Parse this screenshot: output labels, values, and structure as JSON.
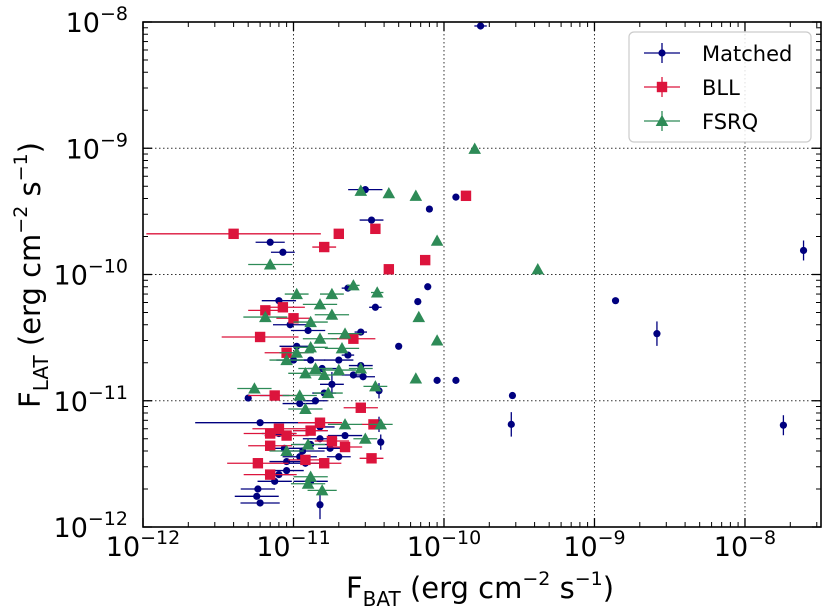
{
  "chart_data": {
    "type": "scatter",
    "x_scale": "log",
    "y_scale": "log",
    "xlim": [
      1e-12,
      3.2e-08
    ],
    "ylim": [
      1e-12,
      1e-08
    ],
    "x_ticks": [
      {
        "value": 1e-12,
        "base": "10",
        "exp": "−12"
      },
      {
        "value": 1e-11,
        "base": "10",
        "exp": "−11"
      },
      {
        "value": 1e-10,
        "base": "10",
        "exp": "−10"
      },
      {
        "value": 1e-09,
        "base": "10",
        "exp": "−9"
      },
      {
        "value": 1e-08,
        "base": "10",
        "exp": "−8"
      }
    ],
    "y_ticks": [
      {
        "value": 1e-12,
        "base": "10",
        "exp": "−12"
      },
      {
        "value": 1e-11,
        "base": "10",
        "exp": "−11"
      },
      {
        "value": 1e-10,
        "base": "10",
        "exp": "−10"
      },
      {
        "value": 1e-09,
        "base": "10",
        "exp": "−9"
      },
      {
        "value": 1e-08,
        "base": "10",
        "exp": "−8"
      }
    ],
    "xlabel": {
      "main": "F",
      "sub": "BAT",
      "unit_a": " (erg cm",
      "exp_a": "−2",
      "unit_b": " s",
      "exp_b": "−1",
      "close": ")"
    },
    "ylabel": {
      "main": "F",
      "sub": "LAT",
      "unit_a": " (erg cm",
      "exp_a": "−2",
      "unit_b": " s",
      "exp_b": "−1",
      "close": ")"
    },
    "grid": true,
    "legend_position": "top-right",
    "series": [
      {
        "name": "Matched",
        "color": "#00007f",
        "marker": "circle",
        "points": [
          [
            1.75e-10,
            9.3e-09,
            1.1,
            1.0
          ],
          [
            2.45e-08,
            1.55e-10,
            1.05,
            1.2
          ],
          [
            1.38e-09,
            6.2e-11,
            1.0,
            1.0
          ],
          [
            2.6e-09,
            3.4e-11,
            1.0,
            1.25
          ],
          [
            1.8e-08,
            6.4e-12,
            1.05,
            1.2
          ],
          [
            2.8e-10,
            6.5e-12,
            1.05,
            1.25
          ],
          [
            2.85e-10,
            1.1e-11,
            1.0,
            1.0
          ],
          [
            1.2e-10,
            1.45e-11,
            1.0,
            1.0
          ],
          [
            9e-11,
            1.45e-11,
            1.0,
            1.0
          ],
          [
            8e-11,
            3.3e-10,
            1.0,
            1.0
          ],
          [
            1.2e-10,
            4.1e-10,
            1.0,
            1.0
          ],
          [
            3e-11,
            4.7e-10,
            1.3,
            1.0
          ],
          [
            3.3e-11,
            2.7e-10,
            1.2,
            1.0
          ],
          [
            3.5e-11,
            5.5e-11,
            1.1,
            1.0
          ],
          [
            2.8e-11,
            3.5e-11,
            1.1,
            1.0
          ],
          [
            7.8e-11,
            8e-11,
            1.0,
            1.0
          ],
          [
            6.7e-11,
            6.1e-11,
            1.0,
            1.0
          ],
          [
            5e-11,
            2.7e-11,
            1.0,
            1.0
          ],
          [
            2.3e-11,
            7.8e-11,
            1.1,
            1.0
          ],
          [
            2.3e-11,
            2.3e-11,
            1.1,
            1.0
          ],
          [
            1.3e-11,
            2.1e-11,
            1.25,
            1.0
          ],
          [
            1.25e-11,
            3.6e-11,
            1.3,
            1.0
          ],
          [
            1.05e-11,
            2.7e-11,
            1.3,
            1.0
          ],
          [
            8e-12,
            6.2e-11,
            1.3,
            1.0
          ],
          [
            7e-12,
            1.8e-10,
            1.25,
            1.0
          ],
          [
            8.5e-12,
            1.5e-10,
            1.2,
            1.0
          ],
          [
            9.5e-12,
            4e-11,
            1.3,
            1.0
          ],
          [
            5e-12,
            1.05e-11,
            1.0,
            1.0
          ],
          [
            7.5e-12,
            1.1e-11,
            1.25,
            1.0
          ],
          [
            1.4e-11,
            1e-11,
            1.2,
            1.0
          ],
          [
            1.6e-11,
            1.15e-11,
            1.2,
            1.0
          ],
          [
            1.1e-11,
            9.5e-12,
            1.3,
            1.0
          ],
          [
            3.7e-11,
            1.2e-11,
            1.0,
            1.15
          ],
          [
            3.7e-11,
            6.5e-12,
            1.0,
            1.15
          ],
          [
            3.8e-11,
            4.7e-12,
            1.0,
            1.15
          ],
          [
            2.5e-11,
            1.6e-11,
            1.2,
            1.0
          ],
          [
            2e-11,
            2.1e-11,
            1.25,
            1.0
          ],
          [
            1.8e-11,
            1.35e-11,
            1.2,
            1.25
          ],
          [
            6e-12,
            6.7e-12,
            2.7,
            1.0
          ],
          [
            1.5e-11,
            6.2e-12,
            1.25,
            1.0
          ],
          [
            1.3e-11,
            5.8e-12,
            1.3,
            1.0
          ],
          [
            1.5e-11,
            5e-12,
            1.3,
            1.0
          ],
          [
            1.3e-11,
            4.5e-12,
            1.3,
            1.0
          ],
          [
            1.15e-11,
            4e-12,
            1.4,
            1.0
          ],
          [
            8e-12,
            5.5e-12,
            1.3,
            1.0
          ],
          [
            8.7e-12,
            4.2e-12,
            1.3,
            1.0
          ],
          [
            9e-12,
            3.3e-12,
            1.3,
            1.0
          ],
          [
            9e-12,
            2.8e-12,
            1.3,
            1.0
          ],
          [
            8e-12,
            2.6e-12,
            1.25,
            1.0
          ],
          [
            7.5e-12,
            2.3e-12,
            1.3,
            1.0
          ],
          [
            5.8e-12,
            2e-12,
            1.3,
            1.0
          ],
          [
            5.7e-12,
            1.75e-12,
            1.4,
            1.0
          ],
          [
            6e-12,
            1.55e-12,
            1.35,
            1.0
          ],
          [
            1.3e-11,
            2.3e-12,
            1.3,
            1.0
          ],
          [
            1.5e-11,
            1.5e-12,
            1.0,
            1.3
          ],
          [
            1.2e-11,
            3.2e-12,
            1.3,
            1.0
          ],
          [
            2e-11,
            3.6e-12,
            1.2,
            1.0
          ],
          [
            1.75e-11,
            4.2e-12,
            1.2,
            1.0
          ],
          [
            2.2e-11,
            5.3e-12,
            1.3,
            1.0
          ],
          [
            1.1e-11,
            3.6e-12,
            1.3,
            1.0
          ],
          [
            1e-11,
            2.1e-11,
            1.3,
            1.0
          ],
          [
            1.55e-11,
            1.8e-11,
            1.25,
            1.0
          ],
          [
            2.8e-11,
            1.9e-11,
            1.2,
            1.0
          ],
          [
            2.9e-11,
            1.55e-11,
            1.2,
            1.0
          ]
        ]
      },
      {
        "name": "BLL",
        "color": "#dc143c",
        "marker": "square",
        "points": [
          [
            4e-12,
            2.1e-10,
            3.8,
            1.0
          ],
          [
            1.4e-10,
            4.2e-10,
            1.0,
            1.0
          ],
          [
            4.3e-11,
            1.1e-10,
            1.0,
            1.0
          ],
          [
            3.5e-11,
            2.3e-10,
            1.0,
            1.0
          ],
          [
            2e-11,
            2.1e-10,
            1.0,
            1.0
          ],
          [
            1.6e-11,
            1.65e-10,
            1.2,
            1.0
          ],
          [
            7.5e-11,
            1.3e-10,
            1.0,
            1.0
          ],
          [
            6.5e-12,
            5.2e-11,
            1.3,
            1.0
          ],
          [
            8.5e-12,
            5.5e-11,
            1.4,
            1.0
          ],
          [
            1e-11,
            4.5e-11,
            1.3,
            1.0
          ],
          [
            6e-12,
            3.2e-11,
            1.8,
            1.0
          ],
          [
            9e-12,
            2.4e-11,
            1.4,
            1.0
          ],
          [
            7.5e-12,
            1.1e-11,
            1.5,
            1.0
          ],
          [
            2.5e-11,
            3.1e-11,
            1.4,
            1.0
          ],
          [
            2.8e-11,
            8.8e-12,
            1.3,
            1.0
          ],
          [
            1.5e-11,
            6.7e-12,
            1.4,
            1.0
          ],
          [
            8e-12,
            6e-12,
            1.5,
            1.0
          ],
          [
            7e-12,
            5.5e-12,
            1.5,
            1.0
          ],
          [
            9e-12,
            5.3e-12,
            1.4,
            1.0
          ],
          [
            1.3e-11,
            5.8e-12,
            1.3,
            1.0
          ],
          [
            3.4e-11,
            6.5e-12,
            1.2,
            1.0
          ],
          [
            1.8e-11,
            4.8e-12,
            1.3,
            1.0
          ],
          [
            2.2e-11,
            4.3e-12,
            1.3,
            1.0
          ],
          [
            3.3e-11,
            3.5e-12,
            1.2,
            1.0
          ],
          [
            7e-12,
            4.4e-12,
            1.4,
            1.0
          ],
          [
            5.8e-12,
            3.2e-12,
            1.6,
            1.0
          ],
          [
            7e-12,
            2.6e-12,
            1.5,
            1.0
          ],
          [
            1.2e-11,
            3.4e-12,
            1.3,
            1.0
          ],
          [
            1.6e-11,
            3.2e-12,
            1.3,
            1.0
          ]
        ]
      },
      {
        "name": "FSRQ",
        "color": "#2e8b57",
        "marker": "triangle",
        "points": [
          [
            1.6e-10,
            9.9e-10,
            1.0,
            1.0
          ],
          [
            4.3e-11,
            4.4e-10,
            1.0,
            1.0
          ],
          [
            2.8e-11,
            4.6e-10,
            1.0,
            1.0
          ],
          [
            6.5e-11,
            4.2e-10,
            1.0,
            1.0
          ],
          [
            9e-11,
            1.85e-10,
            1.0,
            1.0
          ],
          [
            4.2e-10,
            1.1e-10,
            1.0,
            1.0
          ],
          [
            6.8e-11,
            4.6e-11,
            1.0,
            1.0
          ],
          [
            9e-11,
            3e-11,
            1.0,
            1.0
          ],
          [
            6.5e-11,
            1.5e-11,
            1.0,
            1.0
          ],
          [
            3.6e-11,
            7.2e-11,
            1.1,
            1.0
          ],
          [
            2.5e-11,
            8.2e-11,
            1.1,
            1.0
          ],
          [
            1.8e-11,
            7e-11,
            1.2,
            1.0
          ],
          [
            1.05e-11,
            7e-11,
            1.2,
            1.0
          ],
          [
            1.5e-11,
            5.8e-11,
            1.3,
            1.0
          ],
          [
            1.8e-11,
            4.8e-11,
            1.3,
            1.0
          ],
          [
            2.2e-11,
            3.4e-11,
            1.3,
            1.0
          ],
          [
            1.5e-11,
            3.1e-11,
            1.3,
            1.0
          ],
          [
            6.5e-12,
            4.6e-11,
            1.4,
            1.0
          ],
          [
            1.3e-11,
            4.2e-11,
            1.3,
            1.0
          ],
          [
            1.2e-11,
            1.65e-11,
            1.3,
            1.0
          ],
          [
            1.4e-11,
            1.8e-11,
            1.3,
            1.0
          ],
          [
            2e-11,
            1.75e-11,
            1.3,
            1.0
          ],
          [
            3.5e-11,
            1.3e-11,
            1.2,
            1.0
          ],
          [
            2.8e-11,
            1.8e-11,
            1.2,
            1.0
          ],
          [
            1.6e-11,
            1.6e-11,
            1.3,
            1.0
          ],
          [
            9e-12,
            2.1e-11,
            1.3,
            1.0
          ],
          [
            1.3e-11,
            2.65e-11,
            1.3,
            1.0
          ],
          [
            3.8e-11,
            6.5e-12,
            1.2,
            1.0
          ],
          [
            3e-11,
            5e-12,
            1.2,
            1.0
          ],
          [
            2.2e-11,
            6.5e-12,
            1.3,
            1.0
          ],
          [
            1.2e-11,
            8.6e-12,
            1.3,
            1.0
          ],
          [
            9e-12,
            4e-12,
            1.3,
            1.0
          ],
          [
            1.1e-11,
            1.1e-11,
            1.3,
            1.0
          ],
          [
            1.25e-11,
            4.5e-12,
            1.3,
            1.0
          ],
          [
            1.3e-11,
            2.5e-12,
            1.3,
            1.0
          ],
          [
            1.25e-11,
            2.2e-12,
            1.3,
            1.0
          ],
          [
            1.55e-11,
            1.95e-12,
            1.25,
            1.0
          ],
          [
            1.7e-11,
            1.15e-11,
            1.25,
            1.0
          ],
          [
            2.1e-11,
            2.6e-11,
            1.3,
            1.0
          ],
          [
            1.05e-11,
            2.4e-11,
            1.3,
            1.0
          ],
          [
            7e-12,
            1.2e-10,
            1.4,
            1.0
          ],
          [
            5.5e-12,
            1.25e-11,
            1.3,
            1.0
          ]
        ]
      }
    ]
  }
}
